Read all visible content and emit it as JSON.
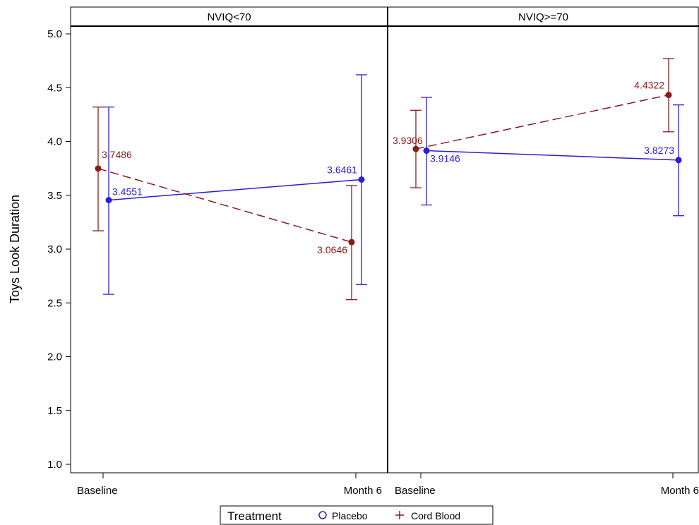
{
  "chart_data": {
    "type": "line",
    "ylabel": "Toys Look Duration",
    "ylim": [
      1.0,
      5.0
    ],
    "yticks": [
      "1.0",
      "1.5",
      "2.0",
      "2.5",
      "3.0",
      "3.5",
      "4.0",
      "4.5",
      "5.0"
    ],
    "categories": [
      "Baseline",
      "Month 6"
    ],
    "grid": false,
    "legend": {
      "title": "Treatment",
      "placement": "bottom",
      "entries": [
        {
          "name": "Placebo",
          "marker": "circle"
        },
        {
          "name": "Cord Blood",
          "marker": "plus"
        }
      ]
    },
    "colors": {
      "Placebo": "#2b1fd6",
      "Cord Blood": "#8b1a1a"
    },
    "panels": [
      {
        "title": "NVIQ<70",
        "series": [
          {
            "name": "Placebo",
            "line": "solid",
            "values": [
              3.4551,
              3.6461
            ],
            "labels": [
              "3.4551",
              "3.6461"
            ],
            "lower": [
              2.58,
              2.67
            ],
            "upper": [
              4.32,
              4.62
            ]
          },
          {
            "name": "Cord Blood",
            "line": "dashed",
            "values": [
              3.7486,
              3.0646
            ],
            "labels": [
              "3.7486",
              "3.0646"
            ],
            "lower": [
              3.17,
              2.53
            ],
            "upper": [
              4.32,
              3.59
            ]
          }
        ]
      },
      {
        "title": "NVIQ>=70",
        "series": [
          {
            "name": "Placebo",
            "line": "solid",
            "values": [
              3.9146,
              3.8273
            ],
            "labels": [
              "3.9146",
              "3.8273"
            ],
            "lower": [
              3.41,
              3.31
            ],
            "upper": [
              4.41,
              4.34
            ]
          },
          {
            "name": "Cord Blood",
            "line": "dashed",
            "values": [
              3.9306,
              4.4322
            ],
            "labels": [
              "3.9306",
              "4.4322"
            ],
            "lower": [
              3.57,
              4.09
            ],
            "upper": [
              4.29,
              4.77
            ]
          }
        ]
      }
    ]
  }
}
